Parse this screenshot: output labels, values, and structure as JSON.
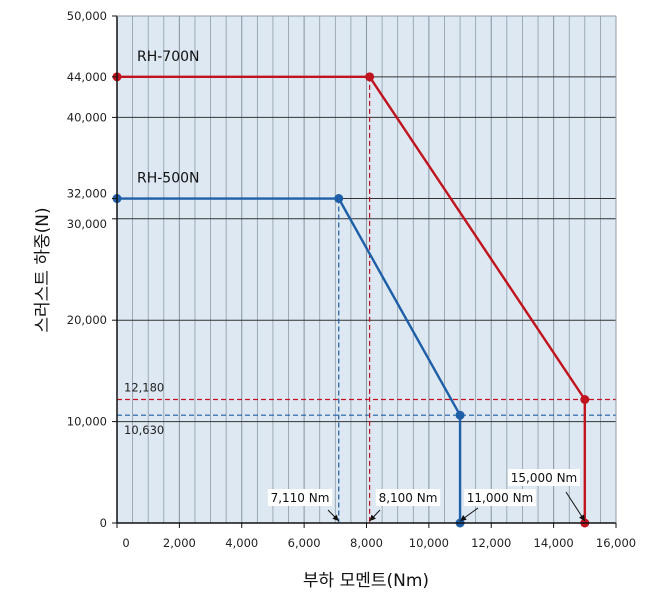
{
  "chart_data": {
    "type": "line",
    "title": "",
    "xlabel": "부하 모멘트(Nm)",
    "ylabel": "스러스트 하중(N)",
    "xlim": [
      0,
      16000
    ],
    "ylim": [
      0,
      50000
    ],
    "grid": true,
    "x_ticks": [
      0,
      2000,
      4000,
      6000,
      8000,
      10000,
      12000,
      14000,
      16000
    ],
    "x_tick_labels": [
      "0",
      "2,000",
      "4,000",
      "6,000",
      "8,000",
      "10,000",
      "12,000",
      "14,000",
      "16,000"
    ],
    "y_ticks": [
      0,
      10000,
      20000,
      30000,
      32000,
      40000,
      44000,
      50000
    ],
    "y_tick_labels": [
      "0",
      "10,000",
      "20,000",
      "30,000",
      "32,000",
      "40,000",
      "44,000",
      "50,000"
    ],
    "series": [
      {
        "name": "RH-700N",
        "color": "#c0141f",
        "points": [
          [
            0,
            44000
          ],
          [
            8100,
            44000
          ],
          [
            15000,
            12180
          ],
          [
            15000,
            0
          ]
        ]
      },
      {
        "name": "RH-500N",
        "color": "#1f5fa8",
        "points": [
          [
            0,
            32000
          ],
          [
            7110,
            32000
          ],
          [
            11000,
            10630
          ],
          [
            11000,
            0
          ]
        ]
      }
    ],
    "reference_lines": {
      "horizontal": [
        {
          "y": 12180,
          "label": "12,180",
          "color": "#c0141f"
        },
        {
          "y": 10630,
          "label": "10,630",
          "color": "#1f5fa8"
        }
      ],
      "vertical": [
        {
          "x": 8100,
          "label": "8,100 Nm",
          "color": "#c0141f"
        },
        {
          "x": 7110,
          "label": "7,110 Nm",
          "color": "#1f5fa8"
        }
      ]
    },
    "annotations": [
      {
        "text": "7,110 Nm",
        "x": 7110,
        "y": 0
      },
      {
        "text": "8,100 Nm",
        "x": 8100,
        "y": 0
      },
      {
        "text": "11,000 Nm",
        "x": 11000,
        "y": 0
      },
      {
        "text": "15,000 Nm",
        "x": 15000,
        "y": 0
      }
    ],
    "colors": {
      "plot_background": "#dde8f2",
      "minor_grid": "#8d9aa6",
      "major_grid": "#333333"
    }
  }
}
